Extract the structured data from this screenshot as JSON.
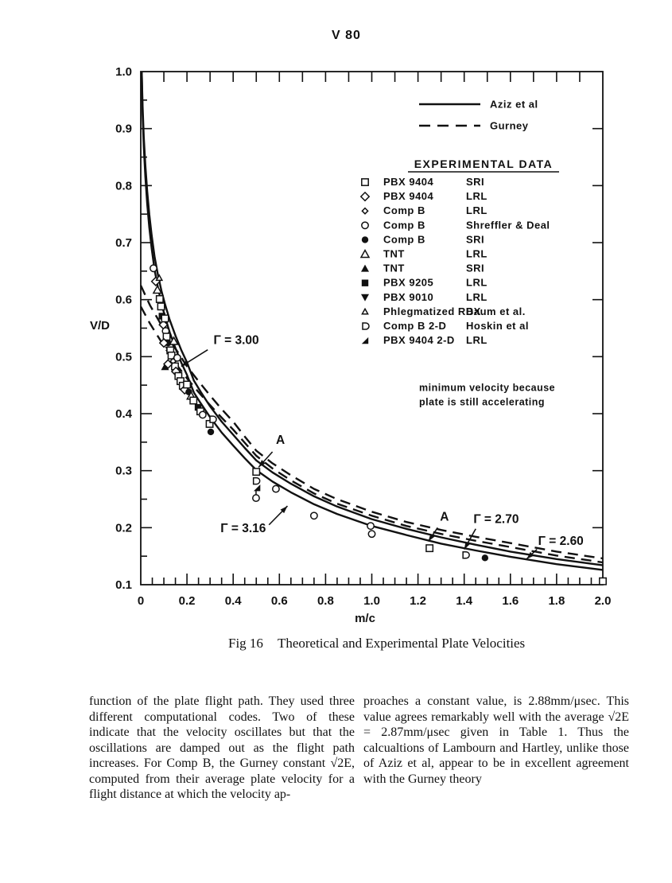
{
  "page": {
    "header": "V 80"
  },
  "chart_data": {
    "type": "line+scatter",
    "title": "Theoretical and Experimental Plate Velocities",
    "xlabel": "m/c",
    "ylabel": "V/D",
    "xlim": [
      0,
      2.0
    ],
    "ylim": [
      0.1,
      1.0
    ],
    "grid": false,
    "x_tick_labels": [
      "0",
      "0.2",
      "0.4",
      "0.6",
      "0.8",
      "1.0",
      "1.2",
      "1.4",
      "1.6",
      "1.8",
      "2.0"
    ],
    "y_tick_labels": [
      "1.0",
      "0.9",
      "0.8",
      "0.7",
      "0.6",
      "0.5",
      "0.4",
      "0.3",
      "0.2",
      "0.1"
    ],
    "line_legend": [
      {
        "label": "Aziz et al",
        "style": "solid"
      },
      {
        "label": "Gurney",
        "style": "dashed"
      }
    ],
    "experimental_legend": {
      "title": "EXPERIMENTAL DATA",
      "entries": [
        {
          "marker": "open-square",
          "material": "PBX 9404",
          "source": "SRI"
        },
        {
          "marker": "open-diamond",
          "material": "PBX 9404",
          "source": "LRL"
        },
        {
          "marker": "small-open-diamond",
          "material": "Comp B",
          "source": "LRL"
        },
        {
          "marker": "open-circle",
          "material": "Comp B",
          "source": "Shreffler & Deal"
        },
        {
          "marker": "filled-circle",
          "material": "Comp B",
          "source": "SRI"
        },
        {
          "marker": "open-triangle",
          "material": "TNT",
          "source": "LRL"
        },
        {
          "marker": "filled-triangle",
          "material": "TNT",
          "source": "SRI"
        },
        {
          "marker": "filled-square",
          "material": "PBX 9205",
          "source": "LRL"
        },
        {
          "marker": "filled-down-triangle",
          "material": "PBX 9010",
          "source": "LRL"
        },
        {
          "marker": "small-open-triangle",
          "material": "Phlegmatized RDX",
          "source": "Baum et al."
        },
        {
          "marker": "open-d",
          "material": "Comp B 2-D",
          "source": "Hoskin et al"
        },
        {
          "marker": "corner-filled-triangle",
          "material": "PBX 9404 2-D",
          "source": "LRL"
        }
      ]
    },
    "series": [
      {
        "id": "aziz-3.00",
        "label": "Γ = 3.00",
        "style": "solid",
        "points": [
          [
            0.004,
            1.0
          ],
          [
            0.008,
            0.94
          ],
          [
            0.013,
            0.885
          ],
          [
            0.02,
            0.835
          ],
          [
            0.028,
            0.79
          ],
          [
            0.037,
            0.75
          ],
          [
            0.047,
            0.713
          ],
          [
            0.06,
            0.675
          ],
          [
            0.075,
            0.642
          ],
          [
            0.09,
            0.615
          ],
          [
            0.105,
            0.592
          ],
          [
            0.125,
            0.565
          ],
          [
            0.15,
            0.537
          ],
          [
            0.175,
            0.512
          ],
          [
            0.2,
            0.49
          ],
          [
            0.23,
            0.458
          ],
          [
            0.26,
            0.438
          ],
          [
            0.3,
            0.413
          ],
          [
            0.35,
            0.386
          ],
          [
            0.4,
            0.363
          ],
          [
            0.45,
            0.34
          ],
          [
            0.5,
            0.318
          ],
          [
            0.57,
            0.297
          ],
          [
            0.65,
            0.277
          ],
          [
            0.75,
            0.255
          ],
          [
            0.85,
            0.237
          ],
          [
            1.0,
            0.215
          ],
          [
            1.15,
            0.198
          ],
          [
            1.3,
            0.183
          ],
          [
            1.45,
            0.17
          ],
          [
            1.6,
            0.158
          ],
          [
            1.8,
            0.145
          ],
          [
            2.0,
            0.134
          ]
        ]
      },
      {
        "id": "aziz-3.16",
        "label": "Γ = 3.16",
        "style": "solid",
        "points": [
          [
            0.004,
            1.0
          ],
          [
            0.008,
            0.925
          ],
          [
            0.013,
            0.868
          ],
          [
            0.02,
            0.815
          ],
          [
            0.028,
            0.768
          ],
          [
            0.037,
            0.727
          ],
          [
            0.047,
            0.69
          ],
          [
            0.06,
            0.652
          ],
          [
            0.075,
            0.62
          ],
          [
            0.09,
            0.593
          ],
          [
            0.105,
            0.57
          ],
          [
            0.125,
            0.543
          ],
          [
            0.15,
            0.515
          ],
          [
            0.175,
            0.49
          ],
          [
            0.2,
            0.468
          ],
          [
            0.23,
            0.437
          ],
          [
            0.26,
            0.418
          ],
          [
            0.3,
            0.394
          ],
          [
            0.35,
            0.367
          ],
          [
            0.4,
            0.344
          ],
          [
            0.45,
            0.322
          ],
          [
            0.5,
            0.301
          ],
          [
            0.57,
            0.281
          ],
          [
            0.65,
            0.262
          ],
          [
            0.75,
            0.241
          ],
          [
            0.85,
            0.224
          ],
          [
            1.0,
            0.203
          ],
          [
            1.15,
            0.187
          ],
          [
            1.3,
            0.172
          ],
          [
            1.45,
            0.16
          ],
          [
            1.6,
            0.149
          ],
          [
            1.8,
            0.136
          ],
          [
            2.0,
            0.126
          ]
        ]
      },
      {
        "id": "gurney-2.60",
        "label": "Γ = 2.60",
        "style": "dashed",
        "points": [
          [
            0,
            0.625
          ],
          [
            0.04,
            0.59
          ],
          [
            0.08,
            0.562
          ],
          [
            0.12,
            0.532
          ],
          [
            0.16,
            0.508
          ],
          [
            0.2,
            0.483
          ],
          [
            0.25,
            0.457
          ],
          [
            0.3,
            0.432
          ],
          [
            0.35,
            0.408
          ],
          [
            0.4,
            0.386
          ],
          [
            0.45,
            0.36
          ],
          [
            0.5,
            0.335
          ],
          [
            0.57,
            0.313
          ],
          [
            0.65,
            0.292
          ],
          [
            0.75,
            0.268
          ],
          [
            0.85,
            0.25
          ],
          [
            1.0,
            0.228
          ],
          [
            1.15,
            0.21
          ],
          [
            1.3,
            0.196
          ],
          [
            1.45,
            0.184
          ],
          [
            1.6,
            0.173
          ],
          [
            1.8,
            0.158
          ],
          [
            2.0,
            0.146
          ]
        ]
      },
      {
        "id": "gurney-2.70",
        "label": "Γ = 2.70",
        "style": "dashed",
        "points": [
          [
            0,
            0.588
          ],
          [
            0.04,
            0.558
          ],
          [
            0.08,
            0.532
          ],
          [
            0.12,
            0.506
          ],
          [
            0.16,
            0.483
          ],
          [
            0.2,
            0.462
          ],
          [
            0.25,
            0.438
          ],
          [
            0.3,
            0.415
          ],
          [
            0.35,
            0.393
          ],
          [
            0.4,
            0.372
          ],
          [
            0.45,
            0.349
          ],
          [
            0.5,
            0.326
          ],
          [
            0.57,
            0.304
          ],
          [
            0.65,
            0.283
          ],
          [
            0.75,
            0.26
          ],
          [
            0.85,
            0.242
          ],
          [
            1.0,
            0.221
          ],
          [
            1.15,
            0.203
          ],
          [
            1.3,
            0.189
          ],
          [
            1.45,
            0.177
          ],
          [
            1.6,
            0.166
          ],
          [
            1.8,
            0.151
          ],
          [
            2.0,
            0.139
          ]
        ]
      }
    ],
    "scatter": [
      [
        0.055,
        0.655,
        "open-circle"
      ],
      [
        0.065,
        0.632,
        "open-diamond"
      ],
      [
        0.072,
        0.617,
        "open-triangle"
      ],
      [
        0.08,
        0.638,
        "small-open-triangle"
      ],
      [
        0.082,
        0.601,
        "open-square"
      ],
      [
        0.088,
        0.588,
        "open-square"
      ],
      [
        0.092,
        0.571,
        "filled-square"
      ],
      [
        0.098,
        0.556,
        "open-diamond"
      ],
      [
        0.105,
        0.567,
        "open-square"
      ],
      [
        0.108,
        0.545,
        "open-circle"
      ],
      [
        0.112,
        0.535,
        "open-square"
      ],
      [
        0.118,
        0.524,
        "filled-circle"
      ],
      [
        0.1,
        0.524,
        "open-diamond"
      ],
      [
        0.122,
        0.512,
        "filled-down-triangle"
      ],
      [
        0.128,
        0.511,
        "open-square"
      ],
      [
        0.133,
        0.502,
        "open-square"
      ],
      [
        0.14,
        0.492,
        "small-open-diamond"
      ],
      [
        0.143,
        0.527,
        "open-triangle"
      ],
      [
        0.148,
        0.483,
        "open-square"
      ],
      [
        0.152,
        0.474,
        "open-diamond"
      ],
      [
        0.158,
        0.498,
        "open-circle"
      ],
      [
        0.163,
        0.466,
        "open-square"
      ],
      [
        0.105,
        0.482,
        "filled-triangle"
      ],
      [
        0.118,
        0.487,
        "open-diamond"
      ],
      [
        0.172,
        0.457,
        "open-square"
      ],
      [
        0.182,
        0.449,
        "open-square"
      ],
      [
        0.19,
        0.442,
        "open-diamond"
      ],
      [
        0.2,
        0.451,
        "open-square"
      ],
      [
        0.208,
        0.438,
        "filled-circle"
      ],
      [
        0.218,
        0.431,
        "open-triangle"
      ],
      [
        0.228,
        0.423,
        "open-square"
      ],
      [
        0.248,
        0.411,
        "filled-square"
      ],
      [
        0.258,
        0.404,
        "open-square"
      ],
      [
        0.268,
        0.398,
        "open-circle"
      ],
      [
        0.298,
        0.382,
        "open-square"
      ],
      [
        0.303,
        0.368,
        "filled-circle"
      ],
      [
        0.31,
        0.39,
        "open-d"
      ],
      [
        0.5,
        0.298,
        "open-square"
      ],
      [
        0.498,
        0.282,
        "open-d"
      ],
      [
        0.503,
        0.27,
        "corner-filled-triangle"
      ],
      [
        0.499,
        0.252,
        "circle-with-stem"
      ],
      [
        0.585,
        0.268,
        "open-circle"
      ],
      [
        0.75,
        0.221,
        "open-circle"
      ],
      [
        0.995,
        0.203,
        "open-circle"
      ],
      [
        1.0,
        0.189,
        "open-circle"
      ],
      [
        1.25,
        0.164,
        "open-square"
      ],
      [
        1.405,
        0.152,
        "open-d"
      ],
      [
        1.49,
        0.147,
        "filled-circle"
      ],
      [
        2.0,
        0.106,
        "open-square"
      ]
    ],
    "annotations": [
      {
        "text": "Γ = 3.00",
        "text_at": [
          0.315,
          0.522
        ],
        "arrow_from": [
          0.29,
          0.512
        ],
        "arrow_to": [
          0.175,
          0.483
        ]
      },
      {
        "text": "A",
        "text_at": [
          0.585,
          0.347
        ],
        "arrow_from": [
          0.57,
          0.333
        ],
        "arrow_to": [
          0.51,
          0.306
        ]
      },
      {
        "text": "Γ = 3.16",
        "text_at": [
          0.345,
          0.192
        ],
        "arrow_from": [
          0.555,
          0.205
        ],
        "arrow_to": [
          0.635,
          0.238
        ]
      },
      {
        "text": "A",
        "text_at": [
          1.295,
          0.212
        ],
        "arrow_from": [
          1.285,
          0.2
        ],
        "arrow_to": [
          1.245,
          0.176
        ]
      },
      {
        "text": "Γ = 2.70",
        "text_at": [
          1.44,
          0.208
        ],
        "arrow_from": [
          1.45,
          0.198
        ],
        "arrow_to": [
          1.4,
          0.162
        ]
      },
      {
        "text": "Γ = 2.60",
        "text_at": [
          1.72,
          0.17
        ],
        "arrow_from": [
          1.715,
          0.162
        ],
        "arrow_to": [
          1.67,
          0.145
        ]
      }
    ],
    "note": {
      "at": [
        1.205,
        0.44
      ],
      "lines": [
        "minimum velocity because",
        "plate is still accelerating"
      ]
    }
  },
  "caption": {
    "label": "Fig 16",
    "title": "Theoretical and Experimental Plate Velocities"
  },
  "body_text": {
    "left": "function of the plate flight path.  They used three different computational codes.  Two of these indicate that the velocity oscillates but that the oscillations are damped out as the flight path increases.  For Comp B, the Gurney constant √2E, computed from their average plate velocity for a flight distance at which the velocity ap-",
    "right": "proaches a constant value, is 2.88mm/μsec. This value agrees remarkably well with the average √2E = 2.87mm/μsec given in Table 1.  Thus the calcualtions of Lambourn and Hartley, unlike those of Aziz et al, appear to be in excellent agreement with the Gurney theory"
  }
}
